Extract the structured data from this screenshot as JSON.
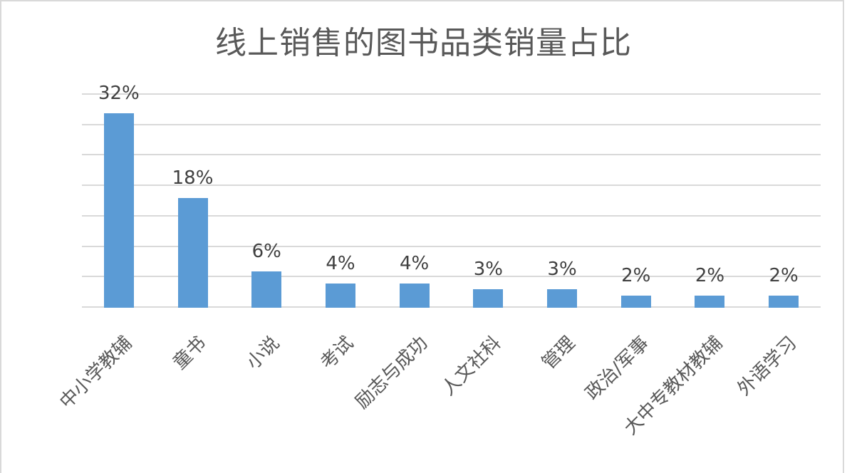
{
  "chart_data": {
    "type": "bar",
    "title": "线上销售的图书品类销量占比",
    "xlabel": "",
    "ylabel": "",
    "categories": [
      "中小学教辅",
      "童书",
      "小说",
      "考试",
      "励志与成功",
      "人文社科",
      "管理",
      "政治/军事",
      "大中专教材教辅",
      "外语学习"
    ],
    "values": [
      32,
      18,
      6,
      4,
      4,
      3,
      3,
      2,
      2,
      2
    ],
    "data_labels": [
      "32%",
      "18%",
      "6%",
      "4%",
      "4%",
      "3%",
      "3%",
      "2%",
      "2%",
      "2%"
    ],
    "ylim": [
      0,
      35
    ],
    "y_gridlines": [
      0,
      5,
      10,
      15,
      20,
      25,
      30,
      35
    ],
    "y_axis_labels_visible": false,
    "grid": true,
    "legend": "none",
    "bar_color": "#5b9bd5",
    "gridline_color": "#d9d9d9"
  }
}
